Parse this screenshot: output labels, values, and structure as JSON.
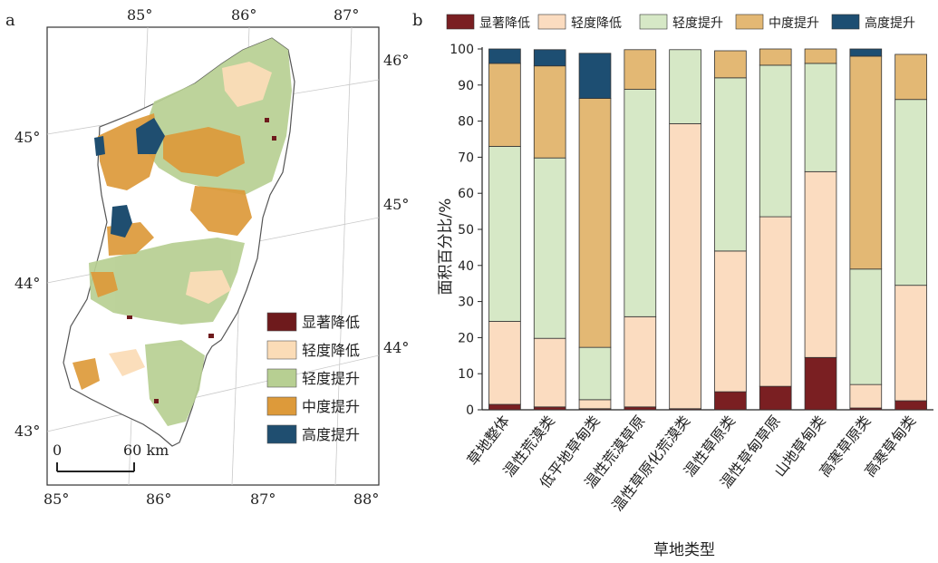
{
  "panel_a_label": "a",
  "panel_b_label": "b",
  "map": {
    "top_ticks": [
      "85°",
      "86°",
      "87°"
    ],
    "bottom_ticks": [
      "85°",
      "86°",
      "87°",
      "88°"
    ],
    "left_ticks": [
      "45°",
      "44°",
      "43°"
    ],
    "right_ticks": [
      "46°",
      "45°",
      "44°"
    ],
    "scale_left": "0",
    "scale_right": "60 km",
    "legend": [
      {
        "label": "显著降低",
        "color": "#6e1a1c"
      },
      {
        "label": "轻度降低",
        "color": "#fbdcb7"
      },
      {
        "label": "轻度提升",
        "color": "#b7cf92"
      },
      {
        "label": "中度提升",
        "color": "#dd9a3a"
      },
      {
        "label": "高度提升",
        "color": "#1f4e70"
      }
    ]
  },
  "chart_data": {
    "type": "bar",
    "stacked": true,
    "xlabel": "草地类型",
    "ylabel": "面积百分比/%",
    "ylim": [
      0,
      100
    ],
    "yticks": [
      0,
      10,
      20,
      30,
      40,
      50,
      60,
      70,
      80,
      90,
      100
    ],
    "legend_position": "top",
    "categories": [
      "草地整体",
      "温性荒漠类",
      "低平地草甸类",
      "温性荒漠草原",
      "温性草原化荒漠类",
      "温性草原类",
      "温性草甸草原",
      "山地草甸类",
      "高寒草原类",
      "高寒草甸类"
    ],
    "series": [
      {
        "name": "显著降低",
        "color": "#7a1f22",
        "values": [
          1.5,
          0.8,
          0.3,
          0.8,
          0.3,
          5.0,
          6.5,
          14.5,
          0.5,
          2.5
        ]
      },
      {
        "name": "轻度降低",
        "color": "#fbdcc0",
        "values": [
          23.0,
          19.0,
          2.5,
          25.0,
          79.0,
          39.0,
          47.0,
          51.5,
          6.5,
          32.0
        ]
      },
      {
        "name": "轻度提升",
        "color": "#d6e8c6",
        "values": [
          48.5,
          50.0,
          14.5,
          63.0,
          20.5,
          48.0,
          42.0,
          30.0,
          32.0,
          51.5
        ]
      },
      {
        "name": "中度提升",
        "color": "#e3b874",
        "values": [
          23.0,
          25.5,
          69.0,
          11.0,
          0.0,
          7.5,
          4.5,
          4.0,
          59.0,
          12.5
        ]
      },
      {
        "name": "高度提升",
        "color": "#1d4e72",
        "values": [
          4.0,
          4.5,
          12.5,
          0.0,
          0.0,
          0.0,
          0.0,
          0.0,
          2.0,
          0.0
        ]
      }
    ]
  }
}
